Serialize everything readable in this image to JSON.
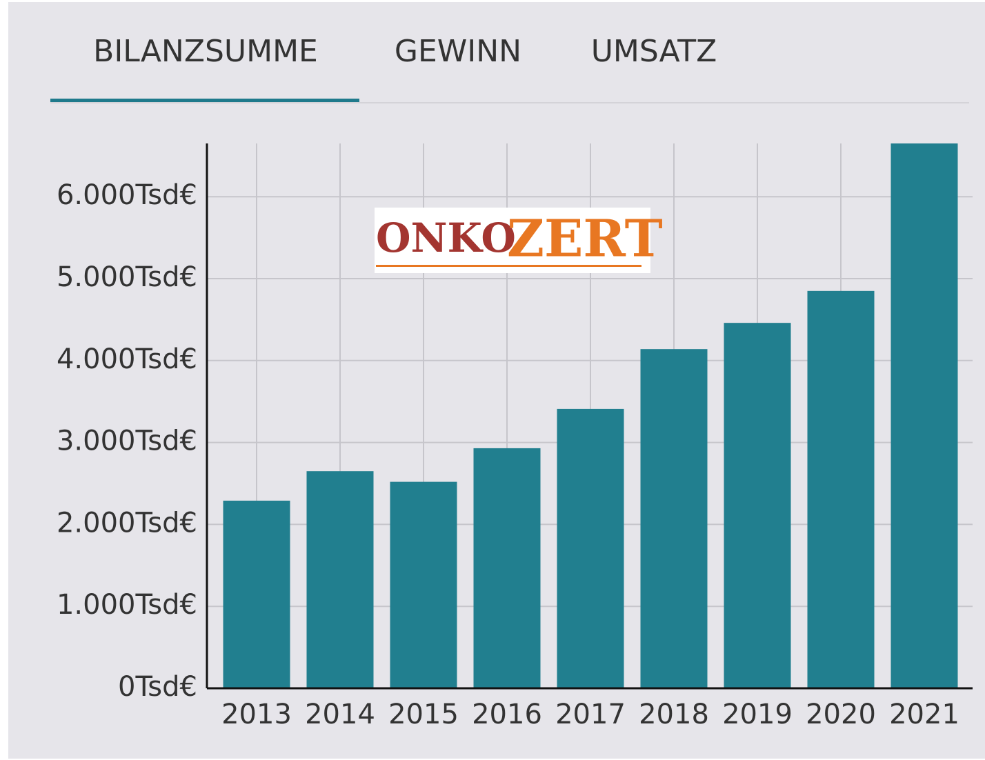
{
  "tabs": [
    "BILANZSUMME",
    "GEWINN",
    "UMSATZ"
  ],
  "logo": {
    "left": "ONKO",
    "right": "ZERT"
  },
  "chart_data": {
    "type": "bar",
    "categories": [
      "2013",
      "2014",
      "2015",
      "2016",
      "2017",
      "2018",
      "2019",
      "2020",
      "2021"
    ],
    "values": [
      2290,
      2650,
      2520,
      2930,
      3410,
      4140,
      4460,
      4850,
      6650
    ],
    "color": "#217f8f",
    "ylim": [
      0,
      6650
    ],
    "yticks": [
      {
        "value": 0,
        "label": "0Tsd€"
      },
      {
        "value": 1000,
        "label": "1.000Tsd€"
      },
      {
        "value": 2000,
        "label": "2.000Tsd€"
      },
      {
        "value": 3000,
        "label": "3.000Tsd€"
      },
      {
        "value": 4000,
        "label": "4.000Tsd€"
      },
      {
        "value": 5000,
        "label": "5.000Tsd€"
      },
      {
        "value": 6000,
        "label": "6.000Tsd€"
      }
    ],
    "grid": true
  }
}
